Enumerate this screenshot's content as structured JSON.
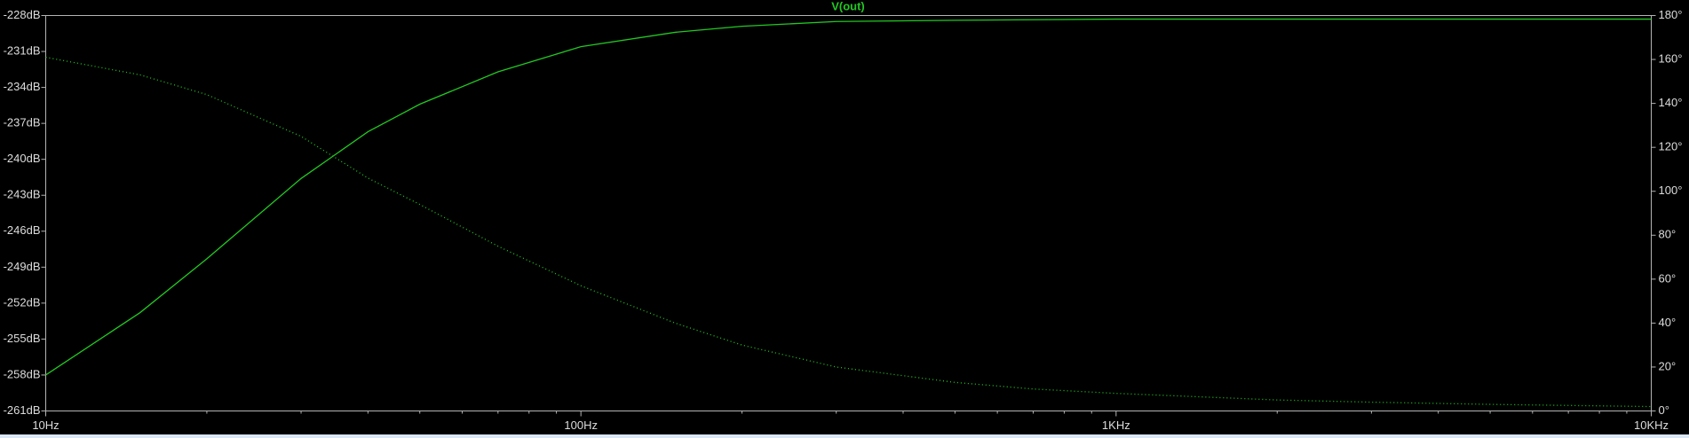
{
  "chart_data": {
    "type": "line",
    "title": "V(out)",
    "xscale": "log",
    "x": [
      10,
      15,
      20,
      30,
      40,
      50,
      70,
      100,
      150,
      200,
      300,
      500,
      700,
      1000,
      2000,
      3000,
      5000,
      10000
    ],
    "series": [
      {
        "color": "#22c822",
        "style": "solid",
        "axis": "y",
        "values": [
          -258.0,
          -252.8,
          -248.3,
          -241.6,
          -237.7,
          -235.4,
          -232.7,
          -230.6,
          -229.4,
          -228.9,
          -228.5,
          -228.4,
          -228.35,
          -228.3,
          -228.3,
          -228.3,
          -228.3,
          -228.3
        ]
      },
      {
        "color": "#22c822",
        "style": "dotted",
        "axis": "y2",
        "values": [
          161,
          153,
          144,
          125,
          106,
          94,
          75,
          57,
          40,
          30,
          20,
          13,
          10,
          8,
          5,
          4,
          3,
          2
        ]
      }
    ],
    "xlim": [
      10,
      10000
    ],
    "xticks": [
      {
        "value": 10,
        "label": "10Hz"
      },
      {
        "value": 100,
        "label": "100Hz"
      },
      {
        "value": 1000,
        "label": "1KHz"
      },
      {
        "value": 10000,
        "label": "10KHz"
      }
    ],
    "xminorticks": [
      20,
      30,
      40,
      50,
      60,
      70,
      80,
      90,
      200,
      300,
      400,
      500,
      600,
      700,
      800,
      900,
      2000,
      3000,
      4000,
      5000,
      6000,
      7000,
      8000,
      9000
    ],
    "ylim": [
      -261,
      -228
    ],
    "yticks": [
      {
        "value": -261,
        "label": "-261dB"
      },
      {
        "value": -258,
        "label": "-258dB"
      },
      {
        "value": -255,
        "label": "-255dB"
      },
      {
        "value": -252,
        "label": "-252dB"
      },
      {
        "value": -249,
        "label": "-249dB"
      },
      {
        "value": -246,
        "label": "-246dB"
      },
      {
        "value": -243,
        "label": "-243dB"
      },
      {
        "value": -240,
        "label": "-240dB"
      },
      {
        "value": -237,
        "label": "-237dB"
      },
      {
        "value": -234,
        "label": "-234dB"
      },
      {
        "value": -231,
        "label": "-231dB"
      },
      {
        "value": -228,
        "label": "-228dB"
      }
    ],
    "y2lim": [
      0,
      180
    ],
    "y2ticks": [
      {
        "value": 0,
        "label": "0°"
      },
      {
        "value": 20,
        "label": "20°"
      },
      {
        "value": 40,
        "label": "40°"
      },
      {
        "value": 60,
        "label": "60°"
      },
      {
        "value": 80,
        "label": "80°"
      },
      {
        "value": 100,
        "label": "100°"
      },
      {
        "value": 120,
        "label": "120°"
      },
      {
        "value": 140,
        "label": "140°"
      },
      {
        "value": 160,
        "label": "160°"
      },
      {
        "value": 180,
        "label": "180°"
      }
    ],
    "title_color": "#22c822"
  }
}
